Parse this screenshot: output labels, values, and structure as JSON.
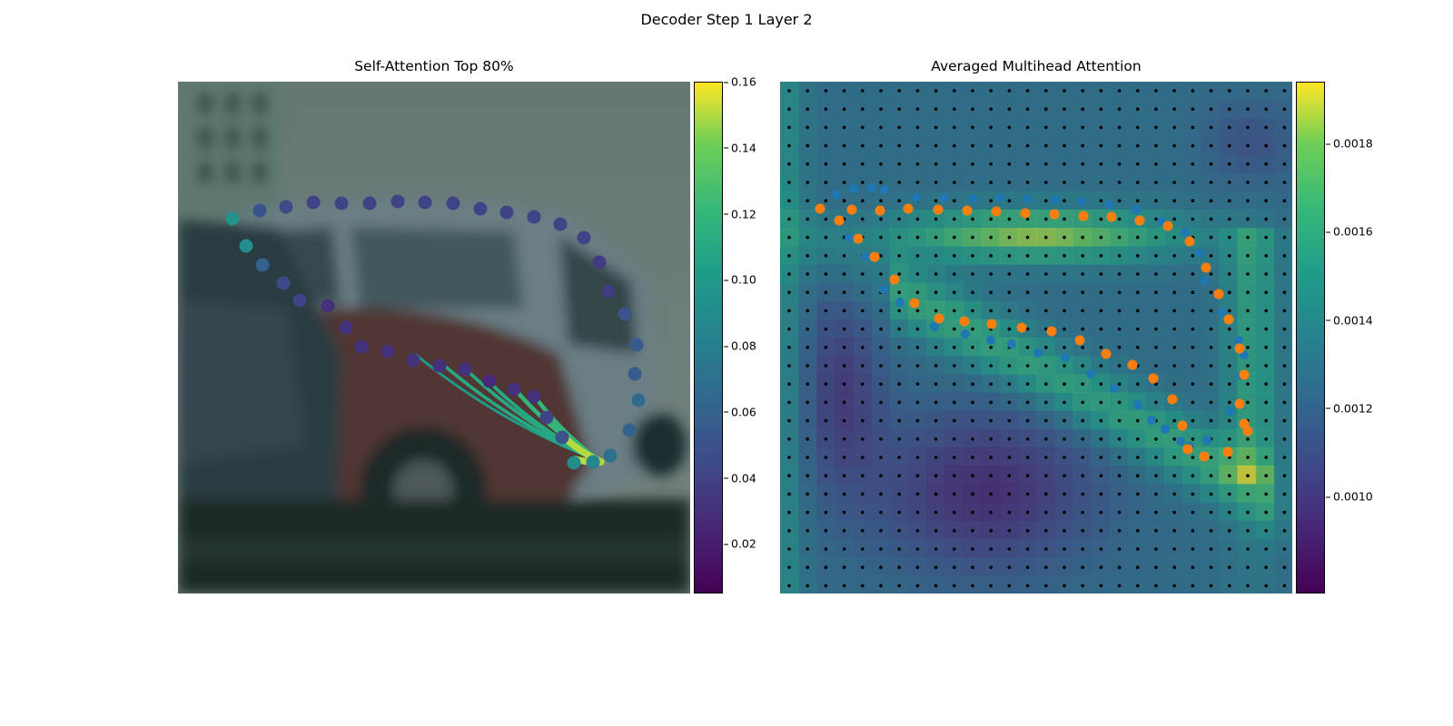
{
  "figure": {
    "title": "Decoder Step 1 Layer 2"
  },
  "chart_data": [
    {
      "type": "scatter",
      "title": "Self-Attention Top 80%",
      "background": "blurred photo of parked cars (red car center, white van behind, dark car left)",
      "colormap": "viridis",
      "colorbar": {
        "min": 0.005,
        "max": 0.16,
        "ticks": [
          0.02,
          0.04,
          0.06,
          0.08,
          0.1,
          0.12,
          0.14,
          0.16
        ],
        "tick_labels": [
          "0.02",
          "0.04",
          "0.06",
          "0.08",
          "0.10",
          "0.12",
          "0.14",
          "0.16"
        ]
      },
      "query_point": [
        466,
        419
      ],
      "points": [
        [
          60,
          151,
          0.095
        ],
        [
          90,
          142,
          0.05
        ],
        [
          119,
          138,
          0.045
        ],
        [
          149,
          133,
          0.04
        ],
        [
          180,
          134,
          0.04
        ],
        [
          211,
          134,
          0.04
        ],
        [
          242,
          132,
          0.04
        ],
        [
          272,
          133,
          0.04
        ],
        [
          303,
          134,
          0.04
        ],
        [
          333,
          140,
          0.04
        ],
        [
          362,
          144,
          0.04
        ],
        [
          392,
          149,
          0.04
        ],
        [
          421,
          157,
          0.04
        ],
        [
          447,
          172,
          0.04
        ],
        [
          464,
          199,
          0.035
        ],
        [
          474,
          231,
          0.035
        ],
        [
          492,
          256,
          0.05
        ],
        [
          505,
          290,
          0.055
        ],
        [
          503,
          322,
          0.055
        ],
        [
          507,
          351,
          0.065
        ],
        [
          497,
          384,
          0.06
        ],
        [
          476,
          412,
          0.07
        ],
        [
          457,
          419,
          0.085
        ],
        [
          436,
          420,
          0.09
        ],
        [
          423,
          392,
          0.05
        ],
        [
          406,
          370,
          0.04
        ],
        [
          392,
          347,
          0.03
        ],
        [
          370,
          339,
          0.03
        ],
        [
          343,
          330,
          0.025
        ],
        [
          316,
          317,
          0.03
        ],
        [
          288,
          313,
          0.03
        ],
        [
          259,
          307,
          0.03
        ],
        [
          231,
          297,
          0.03
        ],
        [
          202,
          292,
          0.03
        ],
        [
          185,
          271,
          0.03
        ],
        [
          165,
          247,
          0.03
        ],
        [
          134,
          241,
          0.04
        ],
        [
          116,
          222,
          0.045
        ],
        [
          93,
          202,
          0.06
        ],
        [
          75,
          181,
          0.09
        ]
      ],
      "attention_lines": [
        [
          466,
          419,
          262,
          301,
          0.1
        ],
        [
          466,
          419,
          290,
          310,
          0.11
        ],
        [
          466,
          419,
          318,
          318,
          0.11
        ],
        [
          466,
          419,
          345,
          333,
          0.11
        ],
        [
          466,
          419,
          372,
          340,
          0.12
        ],
        [
          466,
          419,
          393,
          347,
          0.12
        ],
        [
          466,
          419,
          406,
          368,
          0.12
        ],
        [
          466,
          419,
          423,
          390,
          0.15
        ],
        [
          466,
          419,
          437,
          416,
          0.15
        ]
      ]
    },
    {
      "type": "heatmap",
      "title": "Averaged Multihead Attention",
      "colormap": "viridis",
      "colorbar": {
        "min": 0.00078,
        "max": 0.00194,
        "ticks": [
          0.001,
          0.0012,
          0.0014,
          0.0016,
          0.0018
        ],
        "tick_labels": [
          "0.0010",
          "0.0012",
          "0.0014",
          "0.0016",
          "0.0018"
        ]
      },
      "grid": {
        "rows": 28,
        "cols": 28
      },
      "blue_points": [
        [
          62,
          125
        ],
        [
          81,
          118
        ],
        [
          101,
          117
        ],
        [
          115,
          119
        ],
        [
          150,
          128
        ],
        [
          180,
          128
        ],
        [
          212,
          129
        ],
        [
          242,
          128
        ],
        [
          272,
          129
        ],
        [
          303,
          130
        ],
        [
          332,
          132
        ],
        [
          362,
          136
        ],
        [
          392,
          141
        ],
        [
          420,
          154
        ],
        [
          446,
          166
        ],
        [
          462,
          189
        ],
        [
          467,
          219
        ],
        [
          486,
          254
        ],
        [
          505,
          285
        ],
        [
          511,
          301
        ],
        [
          508,
          324
        ],
        [
          495,
          363
        ],
        [
          470,
          395
        ],
        [
          451,
          402
        ],
        [
          441,
          396
        ],
        [
          424,
          383
        ],
        [
          409,
          373
        ],
        [
          394,
          356
        ],
        [
          368,
          338
        ],
        [
          342,
          322
        ],
        [
          314,
          304
        ],
        [
          284,
          299
        ],
        [
          255,
          289
        ],
        [
          232,
          285
        ],
        [
          204,
          278
        ],
        [
          170,
          270
        ],
        [
          132,
          243
        ],
        [
          114,
          229
        ],
        [
          94,
          193
        ],
        [
          76,
          172
        ]
      ],
      "orange_points": [
        [
          44,
          140
        ],
        [
          65,
          153
        ],
        [
          79,
          141
        ],
        [
          110,
          142
        ],
        [
          141,
          140
        ],
        [
          174,
          141
        ],
        [
          206,
          142
        ],
        [
          238,
          143
        ],
        [
          270,
          145
        ],
        [
          302,
          146
        ],
        [
          334,
          148
        ],
        [
          365,
          149
        ],
        [
          396,
          153
        ],
        [
          427,
          159
        ],
        [
          451,
          176
        ],
        [
          469,
          205
        ],
        [
          483,
          234
        ],
        [
          494,
          262
        ],
        [
          506,
          294
        ],
        [
          511,
          323
        ],
        [
          506,
          355
        ],
        [
          511,
          377
        ],
        [
          515,
          385
        ],
        [
          493,
          408
        ],
        [
          467,
          413
        ],
        [
          449,
          405
        ],
        [
          443,
          379
        ],
        [
          432,
          350
        ],
        [
          411,
          327
        ],
        [
          388,
          312
        ],
        [
          359,
          300
        ],
        [
          330,
          285
        ],
        [
          299,
          275
        ],
        [
          266,
          271
        ],
        [
          233,
          267
        ],
        [
          203,
          264
        ],
        [
          175,
          261
        ],
        [
          148,
          244
        ],
        [
          126,
          218
        ],
        [
          104,
          193
        ],
        [
          86,
          173
        ]
      ]
    }
  ]
}
